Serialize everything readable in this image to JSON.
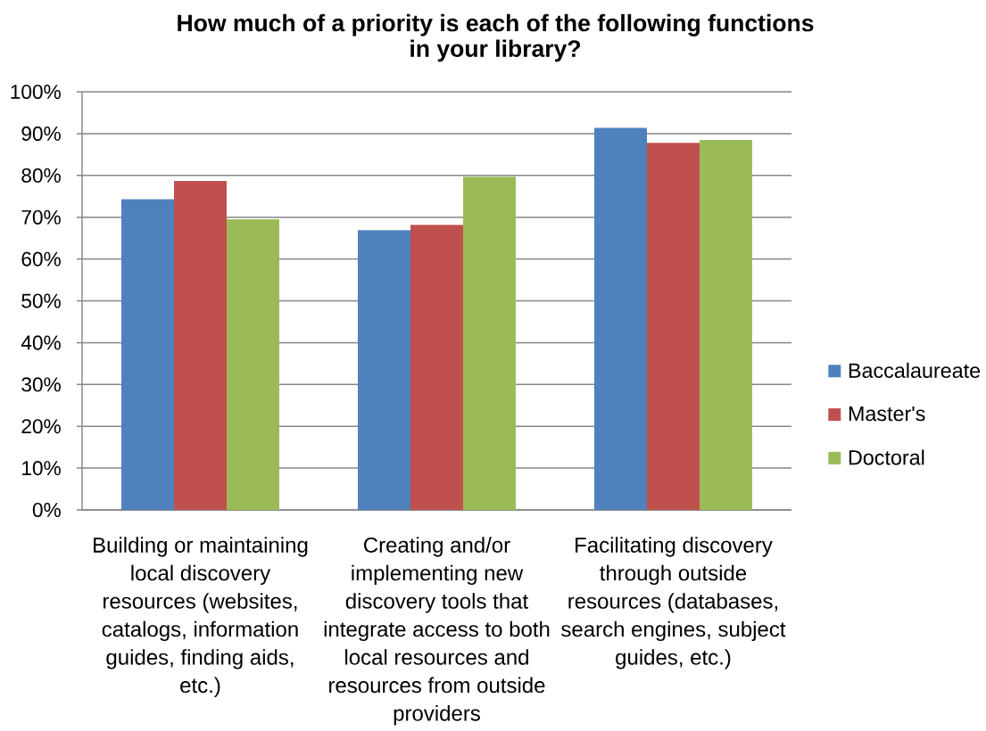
{
  "chart_data": {
    "type": "bar",
    "title": "How much of a priority is each of the following functions in your library?",
    "categories": [
      "Building or maintaining local discovery resources (websites, catalogs, information guides, finding aids, etc.)",
      "Creating and/or implementing new discovery tools that integrate access to both local resources and resources from outside providers",
      "Facilitating discovery through outside resources (databases, search engines, subject guides, etc.)"
    ],
    "series": [
      {
        "name": "Baccalaureate",
        "color": "#4f81bd",
        "values": [
          74.3,
          66.9,
          91.4
        ]
      },
      {
        "name": "Master's",
        "color": "#c0504d",
        "values": [
          78.7,
          68.2,
          87.8
        ]
      },
      {
        "name": "Doctoral",
        "color": "#9bbb59",
        "values": [
          69.5,
          79.7,
          88.5
        ]
      }
    ],
    "ylim": [
      0,
      100
    ],
    "yticks": [
      {
        "value": 0,
        "label": "0%"
      },
      {
        "value": 10,
        "label": "10%"
      },
      {
        "value": 20,
        "label": "20%"
      },
      {
        "value": 30,
        "label": "30%"
      },
      {
        "value": 40,
        "label": "40%"
      },
      {
        "value": 50,
        "label": "50%"
      },
      {
        "value": 60,
        "label": "60%"
      },
      {
        "value": 70,
        "label": "70%"
      },
      {
        "value": 80,
        "label": "80%"
      },
      {
        "value": 90,
        "label": "90%"
      },
      {
        "value": 100,
        "label": "100%"
      }
    ],
    "grid": "y",
    "legend": "right"
  }
}
